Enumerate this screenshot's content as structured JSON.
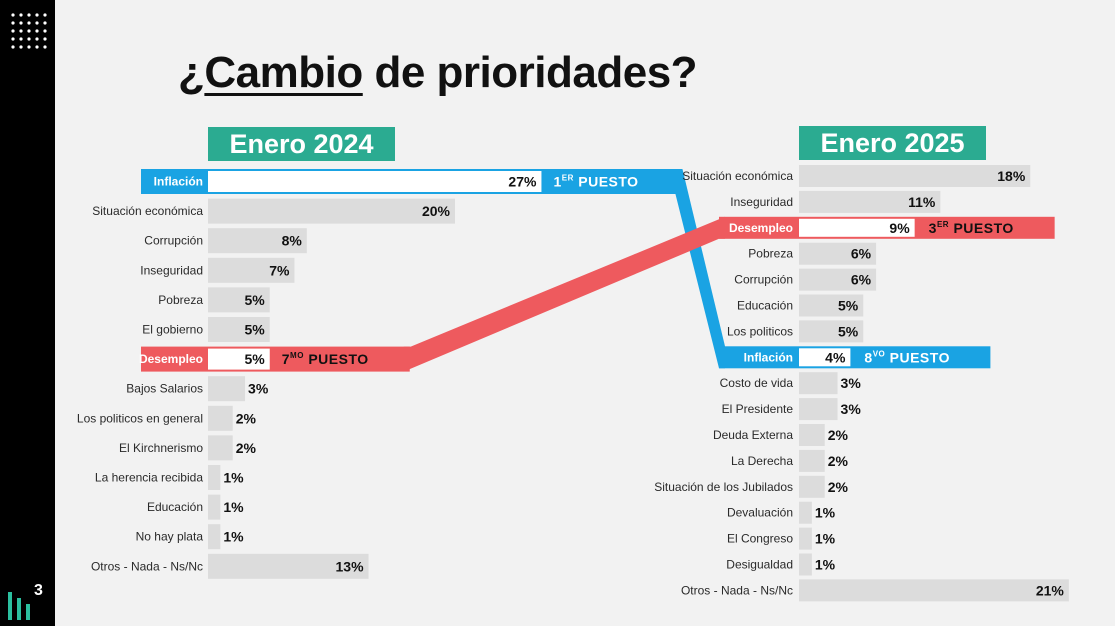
{
  "title": {
    "prefix": "¿",
    "underlined": "Cambio",
    "suffix": " de prioridades?"
  },
  "logo": {
    "number": "3"
  },
  "colors": {
    "teal": "#2bab91",
    "blue": "#1aa3e3",
    "red": "#ee5a5e",
    "bar": "#dcdcdc",
    "sidebar": "#000000"
  },
  "chart_data": [
    {
      "type": "bar",
      "orientation": "horizontal",
      "title": "Enero 2024",
      "unit": "%",
      "categories": [
        "Inflación",
        "Situación económica",
        "Corrupción",
        "Inseguridad",
        "Pobreza",
        "El gobierno",
        "Desempleo",
        "Bajos Salarios",
        "Los politicos en general",
        "El Kirchnerismo",
        "La herencia recibida",
        "Educación",
        "No hay plata",
        "Otros - Nada - Ns/Nc"
      ],
      "values": [
        27,
        20,
        8,
        7,
        5,
        5,
        5,
        3,
        2,
        2,
        1,
        1,
        1,
        13
      ],
      "highlights": [
        {
          "category": "Inflación",
          "color": "blue",
          "rank_num": "1",
          "rank_sup": "ER",
          "rank_word": "PUESTO"
        },
        {
          "category": "Desempleo",
          "color": "red",
          "rank_num": "7",
          "rank_sup": "MO",
          "rank_word": "PUESTO"
        }
      ]
    },
    {
      "type": "bar",
      "orientation": "horizontal",
      "title": "Enero 2025",
      "unit": "%",
      "categories": [
        "Situación económica",
        "Inseguridad",
        "Desempleo",
        "Pobreza",
        "Corrupción",
        "Educación",
        "Los politicos",
        "Inflación",
        "Costo de vida",
        "El Presidente",
        "Deuda Externa",
        "La Derecha",
        "Situación de los Jubilados",
        "Devaluación",
        "El Congreso",
        "Desigualdad",
        "Otros - Nada - Ns/Nc"
      ],
      "values": [
        18,
        11,
        9,
        6,
        6,
        5,
        5,
        4,
        3,
        3,
        2,
        2,
        2,
        1,
        1,
        1,
        21
      ],
      "highlights": [
        {
          "category": "Desempleo",
          "color": "red",
          "rank_num": "3",
          "rank_sup": "ER",
          "rank_word": "PUESTO"
        },
        {
          "category": "Inflación",
          "color": "blue",
          "rank_num": "8",
          "rank_sup": "VO",
          "rank_word": "PUESTO"
        }
      ]
    }
  ]
}
